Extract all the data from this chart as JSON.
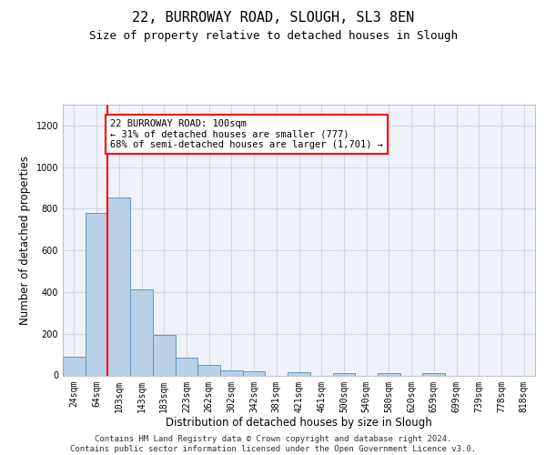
{
  "title1": "22, BURROWAY ROAD, SLOUGH, SL3 8EN",
  "title2": "Size of property relative to detached houses in Slough",
  "xlabel": "Distribution of detached houses by size in Slough",
  "ylabel": "Number of detached properties",
  "footer": "Contains HM Land Registry data © Crown copyright and database right 2024.\nContains public sector information licensed under the Open Government Licence v3.0.",
  "bar_labels": [
    "24sqm",
    "64sqm",
    "103sqm",
    "143sqm",
    "183sqm",
    "223sqm",
    "262sqm",
    "302sqm",
    "342sqm",
    "381sqm",
    "421sqm",
    "461sqm",
    "500sqm",
    "540sqm",
    "580sqm",
    "620sqm",
    "659sqm",
    "699sqm",
    "739sqm",
    "778sqm",
    "818sqm"
  ],
  "bar_heights": [
    90,
    780,
    855,
    415,
    195,
    85,
    50,
    25,
    18,
    0,
    15,
    0,
    10,
    0,
    10,
    0,
    10,
    0,
    0,
    0,
    0
  ],
  "bar_color": "#b8d0e8",
  "bar_edge_color": "#6699bb",
  "red_line_index": 2,
  "annotation_text": "22 BURROWAY ROAD: 100sqm\n← 31% of detached houses are smaller (777)\n68% of semi-detached houses are larger (1,701) →",
  "annotation_box_color": "white",
  "annotation_box_edge": "red",
  "ylim": [
    0,
    1300
  ],
  "yticks": [
    0,
    200,
    400,
    600,
    800,
    1000,
    1200
  ],
  "grid_color": "#d0d8e4",
  "bg_color": "#eef2f8",
  "title1_fontsize": 11,
  "title2_fontsize": 9,
  "xlabel_fontsize": 8.5,
  "ylabel_fontsize": 8.5,
  "footer_fontsize": 6.5,
  "annot_fontsize": 7.5,
  "tick_fontsize": 7
}
